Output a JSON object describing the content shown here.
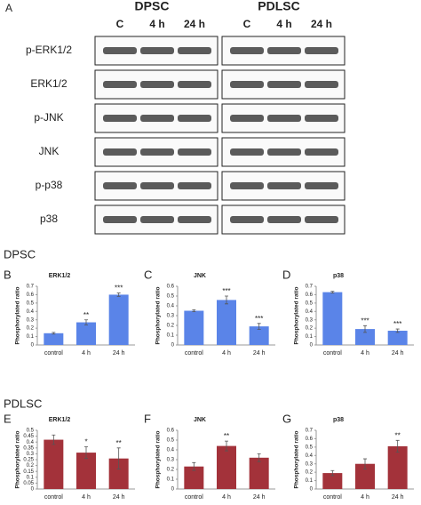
{
  "blots": {
    "panel": "A",
    "groups": [
      {
        "name": "DPSC",
        "lanes": [
          "C",
          "4 h",
          "24 h"
        ]
      },
      {
        "name": "PDLSC",
        "lanes": [
          "C",
          "4 h",
          "24 h"
        ]
      }
    ],
    "rows": [
      "p-ERK1/2",
      "ERK1/2",
      "p-JNK",
      "JNK",
      "p-p38",
      "p38"
    ]
  },
  "section_labels": [
    "DPSC",
    "PDLSC"
  ],
  "chart_data": [
    {
      "type": "bar",
      "panel": "B",
      "title": "ERK1/2",
      "ylabel": "Phosphorylated ratio",
      "categories": [
        "control",
        "4 h",
        "24 h"
      ],
      "values": [
        0.14,
        0.27,
        0.6
      ],
      "errors": [
        0.01,
        0.03,
        0.02
      ],
      "annotations": [
        null,
        "**",
        "***"
      ],
      "color": "#5a84e8",
      "ylim": [
        0,
        0.7
      ],
      "yticks": [
        0,
        0.1,
        0.2,
        0.3,
        0.4,
        0.5,
        0.6,
        0.7
      ]
    },
    {
      "type": "bar",
      "panel": "C",
      "title": "JNK",
      "ylabel": "Phosphorylated ratio",
      "categories": [
        "control",
        "4 h",
        "24 h"
      ],
      "values": [
        0.35,
        0.46,
        0.19
      ],
      "errors": [
        0.01,
        0.04,
        0.03
      ],
      "annotations": [
        null,
        "***",
        "***"
      ],
      "color": "#5a84e8",
      "ylim": [
        0,
        0.6
      ],
      "yticks": [
        0,
        0.1,
        0.2,
        0.3,
        0.4,
        0.5,
        0.6
      ]
    },
    {
      "type": "bar",
      "panel": "D",
      "title": "p38",
      "ylabel": "Phosphorylated ratio",
      "categories": [
        "control",
        "4 h",
        "24 h"
      ],
      "values": [
        0.63,
        0.19,
        0.17
      ],
      "errors": [
        0.01,
        0.04,
        0.02
      ],
      "annotations": [
        null,
        "***",
        "***"
      ],
      "color": "#5a84e8",
      "ylim": [
        0,
        0.7
      ],
      "yticks": [
        0,
        0.1,
        0.2,
        0.3,
        0.4,
        0.5,
        0.6,
        0.7
      ]
    },
    {
      "type": "bar",
      "panel": "E",
      "title": "ERK1/2",
      "ylabel": "Phosphorylated ratio",
      "categories": [
        "control",
        "4 h",
        "24 h"
      ],
      "values": [
        0.42,
        0.31,
        0.26
      ],
      "errors": [
        0.04,
        0.05,
        0.09
      ],
      "annotations": [
        null,
        "*",
        "**"
      ],
      "color": "#a3323a",
      "ylim": [
        0,
        0.5
      ],
      "yticks": [
        0,
        0.05,
        0.1,
        0.15,
        0.2,
        0.25,
        0.3,
        0.35,
        0.4,
        0.45,
        0.5
      ]
    },
    {
      "type": "bar",
      "panel": "F",
      "title": "JNK",
      "ylabel": "Phosphorylated ratio",
      "categories": [
        "control",
        "4 h",
        "24 h"
      ],
      "values": [
        0.23,
        0.44,
        0.32
      ],
      "errors": [
        0.04,
        0.05,
        0.04
      ],
      "annotations": [
        null,
        "**",
        null
      ],
      "color": "#a3323a",
      "ylim": [
        0,
        0.6
      ],
      "yticks": [
        0,
        0.1,
        0.2,
        0.3,
        0.4,
        0.5,
        0.6
      ]
    },
    {
      "type": "bar",
      "panel": "G",
      "title": "p38",
      "ylabel": "Phosphorylated ratio",
      "categories": [
        "control",
        "4 h",
        "24 h"
      ],
      "values": [
        0.19,
        0.3,
        0.51
      ],
      "errors": [
        0.03,
        0.06,
        0.07
      ],
      "annotations": [
        null,
        null,
        "**"
      ],
      "color": "#a3323a",
      "ylim": [
        0,
        0.7
      ],
      "yticks": [
        0,
        0.1,
        0.2,
        0.3,
        0.4,
        0.5,
        0.6,
        0.7
      ]
    }
  ]
}
